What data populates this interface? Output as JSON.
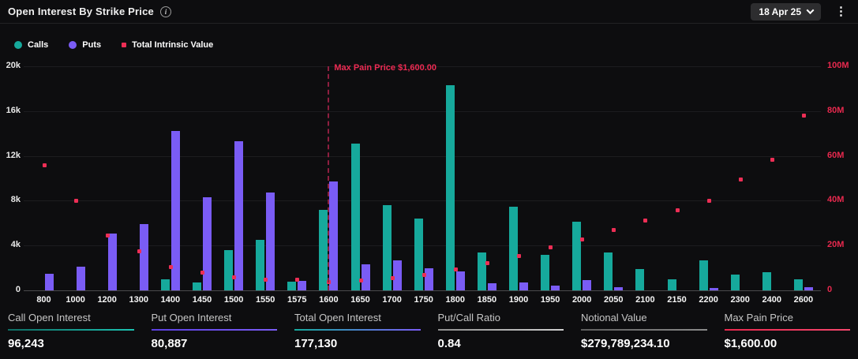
{
  "header": {
    "title": "Open Interest By Strike Price",
    "info_icon": "i",
    "expiry_selected": "18 Apr 25",
    "menu_icon": "kebab-vertical"
  },
  "legend": [
    {
      "label": "Calls",
      "marker": "circle",
      "color": "#16a99c"
    },
    {
      "label": "Puts",
      "marker": "circle",
      "color": "#7a5cf5"
    },
    {
      "label": "Total Intrinsic Value",
      "marker": "square",
      "color": "#ed2e55"
    }
  ],
  "chart_data": {
    "type": "bar",
    "title": "Open Interest By Strike Price",
    "categories": [
      "800",
      "1000",
      "1200",
      "1300",
      "1400",
      "1450",
      "1500",
      "1550",
      "1575",
      "1600",
      "1650",
      "1700",
      "1750",
      "1800",
      "1850",
      "1900",
      "1950",
      "2000",
      "2050",
      "2100",
      "2150",
      "2200",
      "2300",
      "2400",
      "2600"
    ],
    "series": [
      {
        "name": "Calls",
        "type": "bar",
        "axis": "left",
        "color": "#16a99c",
        "values": [
          0,
          0,
          0,
          0,
          1000,
          700,
          3600,
          4500,
          800,
          7200,
          13100,
          7600,
          6400,
          18300,
          3400,
          7500,
          3200,
          6100,
          3400,
          1900,
          1000,
          2700,
          1400,
          1650,
          1000
        ]
      },
      {
        "name": "Puts",
        "type": "bar",
        "axis": "left",
        "color": "#7a5cf5",
        "values": [
          1500,
          2100,
          5100,
          5900,
          14200,
          8300,
          13300,
          8700,
          850,
          9750,
          2300,
          2700,
          2000,
          1700,
          650,
          700,
          400,
          900,
          250,
          0,
          0,
          200,
          0,
          0,
          250
        ]
      },
      {
        "name": "Total Intrinsic Value",
        "type": "scatter",
        "axis": "right",
        "color": "#ed2e55",
        "values": [
          56,
          40,
          24.5,
          17.5,
          10.5,
          8,
          6,
          5,
          5,
          4,
          4.5,
          5.5,
          7,
          9.5,
          12.5,
          15.5,
          19.5,
          23,
          27,
          31.5,
          36,
          40,
          49.5,
          58.5,
          78
        ]
      }
    ],
    "left_axis": {
      "min": 0,
      "max": 20000,
      "ticks": [
        "0",
        "4k",
        "8k",
        "12k",
        "16k",
        "20k"
      ],
      "color": "#e9e9e9"
    },
    "right_axis": {
      "min": 0,
      "max": 100,
      "ticks": [
        "0",
        "20M",
        "40M",
        "60M",
        "80M",
        "100M"
      ],
      "color": "#e8294e",
      "unit": "M"
    },
    "grid": true,
    "legend_position": "top",
    "annotation": {
      "label": "Max Pain Price $1,600.00",
      "category": "1600",
      "line_color": "#8e1f40",
      "text_color": "#ed2b53"
    }
  },
  "stats": [
    {
      "label": "Call Open Interest",
      "value": "96,243",
      "rule_from": "#0f6c63",
      "rule_to": "#1cc2b2"
    },
    {
      "label": "Put Open Interest",
      "value": "80,887",
      "rule_from": "#5b40e0",
      "rule_to": "#7a5cf5"
    },
    {
      "label": "Total Open Interest",
      "value": "177,130",
      "rule_from": "#16a99c",
      "rule_to": "#7a5cf5"
    },
    {
      "label": "Put/Call Ratio",
      "value": "0.84",
      "rule_from": "#8f8f8f",
      "rule_to": "#cfcfcf"
    },
    {
      "label": "Notional Value",
      "value": "$279,789,234.10",
      "rule_from": "#5e5e5e",
      "rule_to": "#8a8a8a"
    },
    {
      "label": "Max Pain Price",
      "value": "$1,600.00",
      "rule_from": "#e8294e",
      "rule_to": "#f4476d"
    }
  ]
}
